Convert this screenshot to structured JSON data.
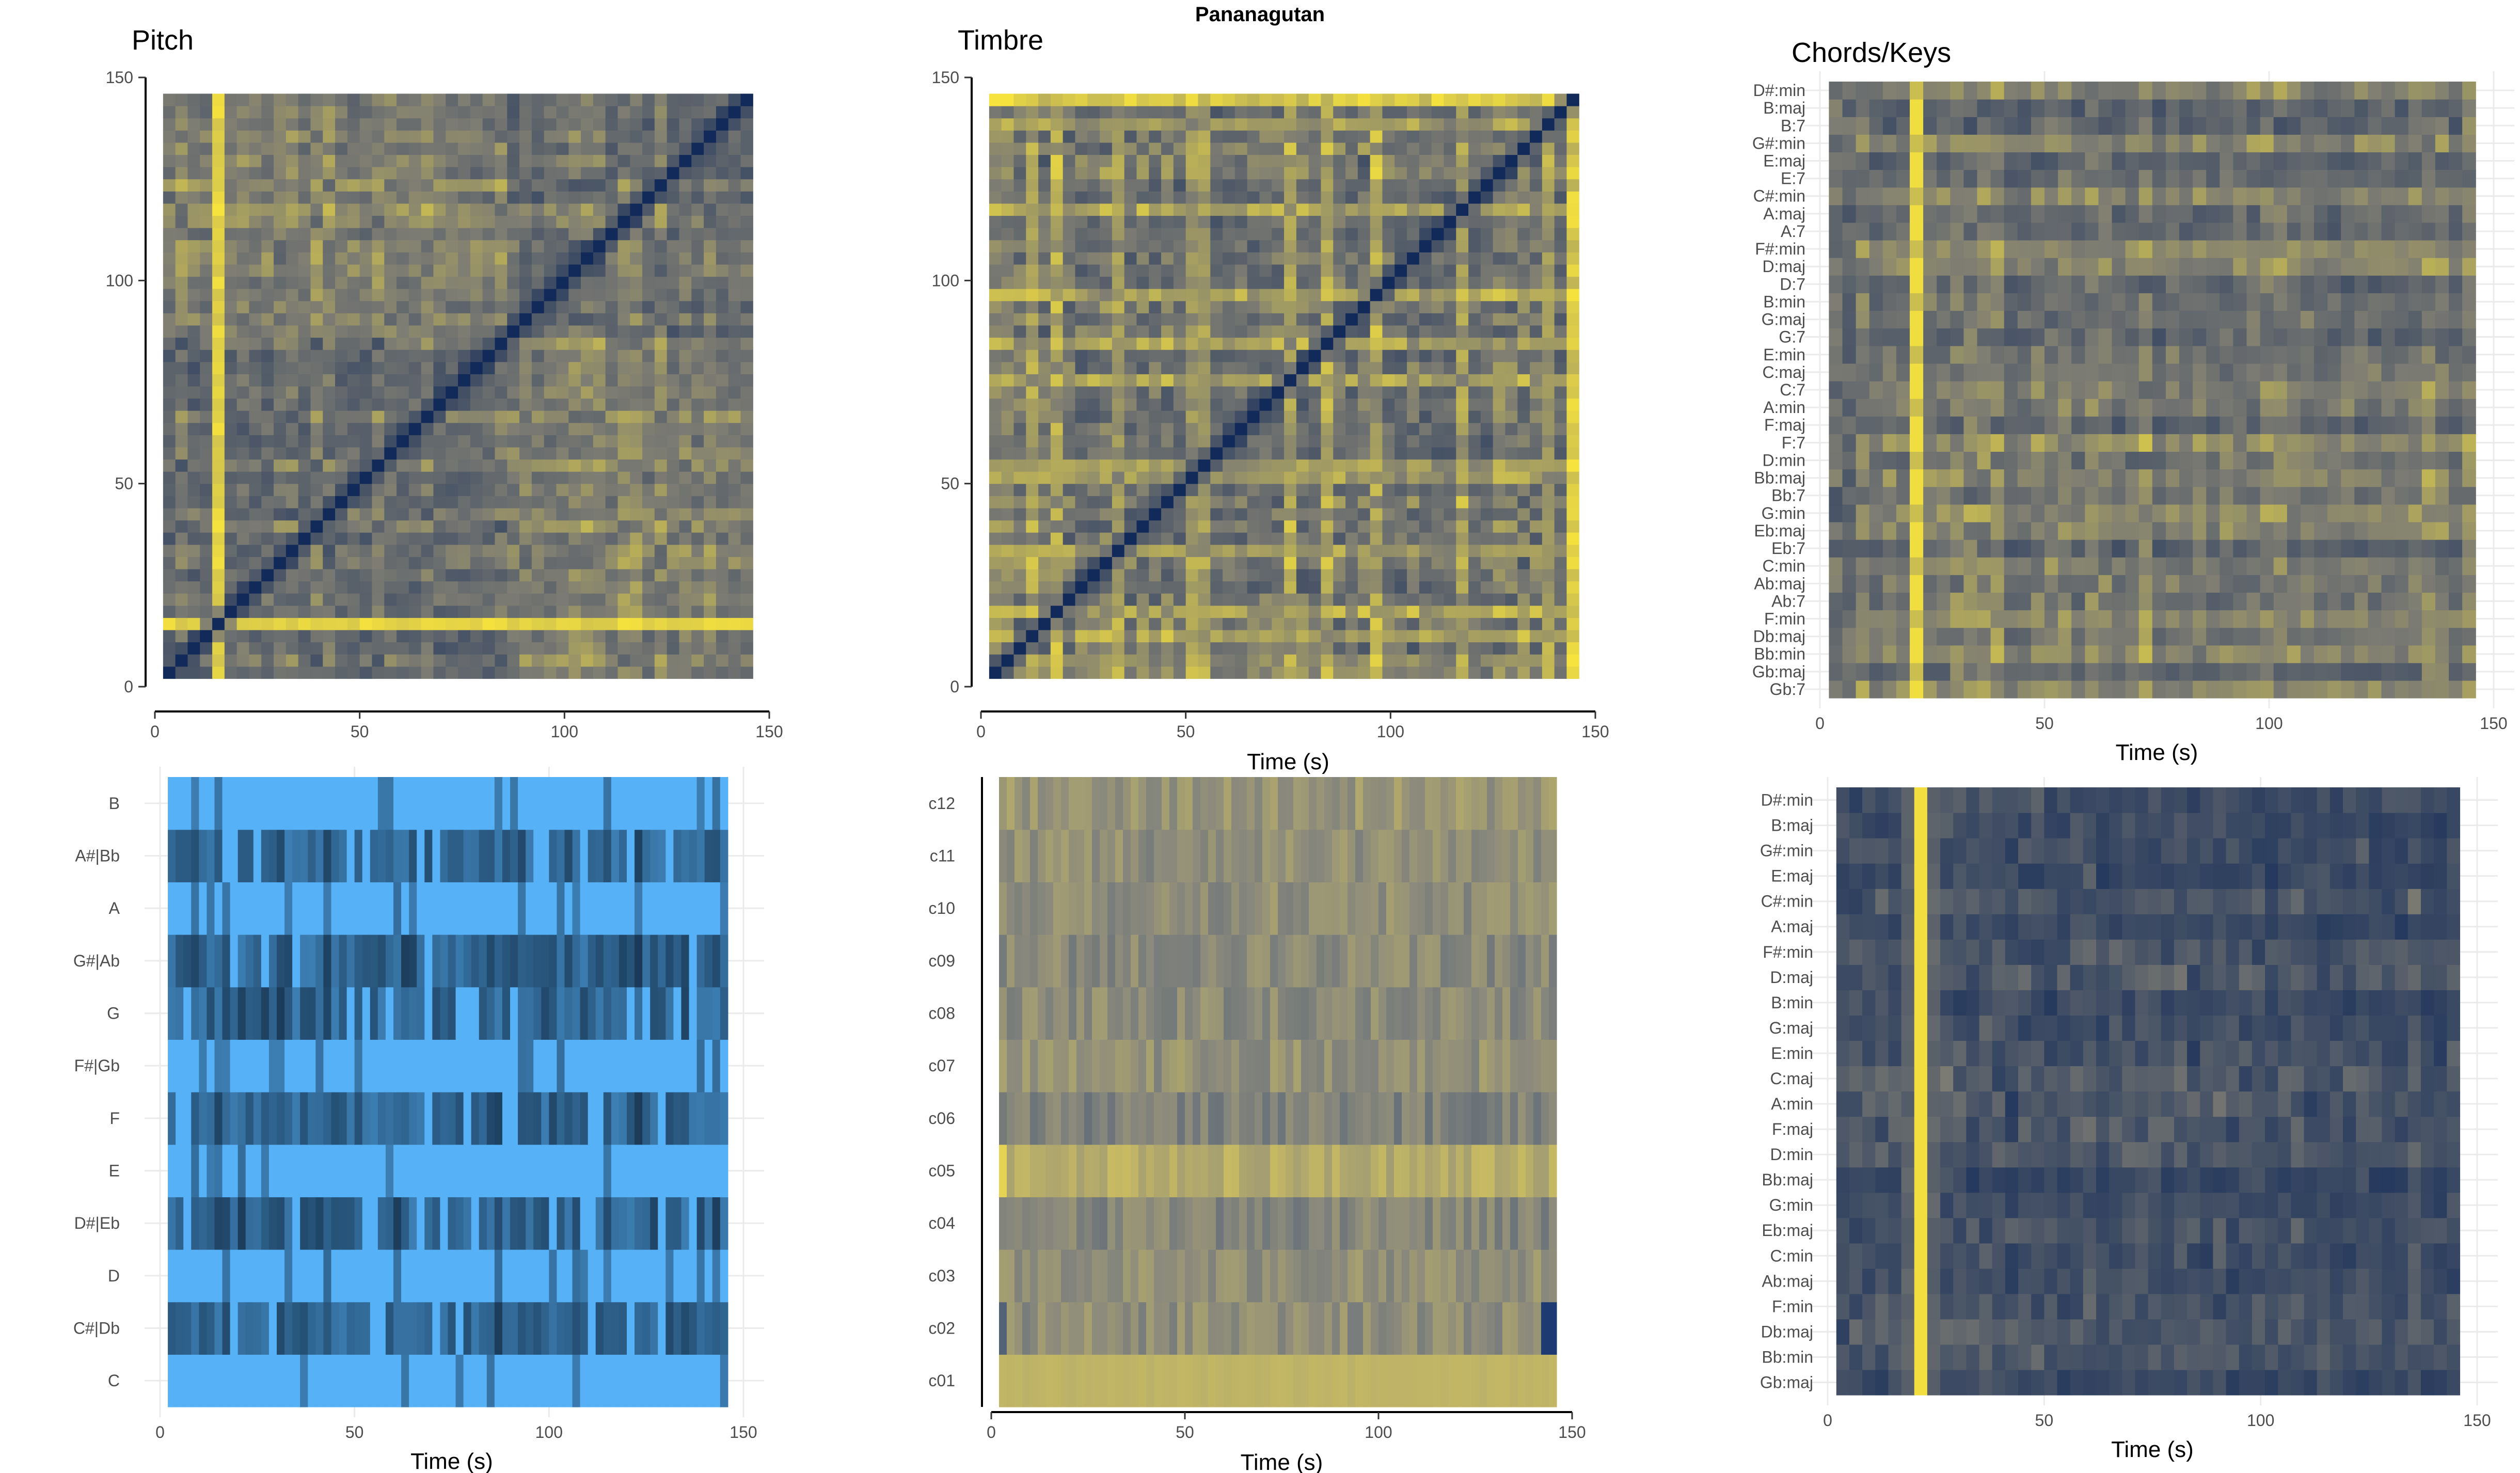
{
  "title": "Pananagutan",
  "colors": {
    "self_sim_low": "#122a59",
    "self_sim_mid": "#7d7c73",
    "self_sim_high": "#f7e33d",
    "chroma_low": "#132b43",
    "chroma_high": "#56b1f7",
    "timbre_low": "#1d3a73",
    "timbre_mid": "#8b8a7c",
    "timbre_high": "#f0db52",
    "axis_line": "#000000",
    "grid": "#ebebeb",
    "tick_text": "#4d4d4d"
  },
  "chart_data": [
    {
      "id": "pitch_selfsim",
      "type": "heatmap",
      "title": "Pitch",
      "xlabel": "",
      "ylabel": "",
      "x_ticks": [
        0,
        50,
        100,
        150
      ],
      "y_ticks": [
        0,
        50,
        100,
        150
      ],
      "xlim": [
        0,
        150
      ],
      "ylim": [
        0,
        150
      ],
      "data_extent": [
        2,
        146
      ],
      "n_cells": 48,
      "color_scale": [
        "self_sim_low",
        "self_sim_mid",
        "self_sim_high"
      ],
      "bright_index": 4,
      "diagonal": "dark"
    },
    {
      "id": "timbre_selfsim",
      "type": "heatmap",
      "title": "Timbre",
      "xlabel": "Time (s)",
      "ylabel": "",
      "x_ticks": [
        0,
        50,
        100,
        150
      ],
      "y_ticks": [
        0,
        50,
        100,
        150
      ],
      "xlim": [
        0,
        150
      ],
      "ylim": [
        0,
        150
      ],
      "data_extent": [
        2,
        146
      ],
      "n_cells": 48,
      "color_scale": [
        "self_sim_low",
        "self_sim_mid",
        "self_sim_high"
      ],
      "bright_index": 47,
      "diagonal": "dark"
    },
    {
      "id": "chords_keys",
      "type": "heatmap",
      "title": "Chords/Keys",
      "xlabel": "Time (s)",
      "ylabel": "",
      "x_ticks": [
        0,
        50,
        100,
        150
      ],
      "xlim": [
        0,
        150
      ],
      "data_extent": [
        2,
        146
      ],
      "n_cols": 48,
      "bright_col": 6,
      "color_scale": [
        "self_sim_low",
        "self_sim_mid",
        "self_sim_high"
      ],
      "categories": [
        "Gb:7",
        "Gb:maj",
        "Bb:min",
        "Db:maj",
        "F:min",
        "Ab:7",
        "Ab:maj",
        "C:min",
        "Eb:7",
        "Eb:maj",
        "G:min",
        "Bb:7",
        "Bb:maj",
        "D:min",
        "F:7",
        "F:maj",
        "A:min",
        "C:7",
        "C:maj",
        "E:min",
        "G:7",
        "G:maj",
        "B:min",
        "D:7",
        "D:maj",
        "F#:min",
        "A:7",
        "A:maj",
        "C#:min",
        "E:7",
        "E:maj",
        "G#:min",
        "B:7",
        "B:maj",
        "D#:min"
      ]
    },
    {
      "id": "chromagram",
      "type": "heatmap",
      "title": "",
      "xlabel": "Time (s)",
      "ylabel": "",
      "x_ticks": [
        0,
        50,
        100,
        150
      ],
      "xlim": [
        0,
        150
      ],
      "data_extent": [
        2,
        146
      ],
      "n_cols": 72,
      "color_scale": [
        "chroma_low",
        "chroma_high"
      ],
      "categories": [
        "C",
        "C#|Db",
        "D",
        "D#|Eb",
        "E",
        "F",
        "F#|Gb",
        "G",
        "G#|Ab",
        "A",
        "A#|Bb",
        "B"
      ]
    },
    {
      "id": "cepstrogram",
      "type": "heatmap",
      "title": "",
      "xlabel": "Time (s)",
      "ylabel": "",
      "x_ticks": [
        0,
        50,
        100,
        150
      ],
      "xlim": [
        0,
        150
      ],
      "data_extent": [
        2,
        146
      ],
      "n_cols": 72,
      "color_scale": [
        "timbre_low",
        "timbre_mid",
        "timbre_high"
      ],
      "categories": [
        "c01",
        "c02",
        "c03",
        "c04",
        "c05",
        "c06",
        "c07",
        "c08",
        "c09",
        "c10",
        "c11",
        "c12"
      ]
    },
    {
      "id": "keygram",
      "type": "heatmap",
      "title": "",
      "xlabel": "Time (s)",
      "ylabel": "",
      "x_ticks": [
        0,
        50,
        100,
        150
      ],
      "xlim": [
        0,
        150
      ],
      "data_extent": [
        2,
        146
      ],
      "n_cols": 48,
      "bright_col": 6,
      "color_scale": [
        "self_sim_low",
        "self_sim_mid",
        "self_sim_high"
      ],
      "categories": [
        "Gb:maj",
        "Bb:min",
        "Db:maj",
        "F:min",
        "Ab:maj",
        "C:min",
        "Eb:maj",
        "G:min",
        "Bb:maj",
        "D:min",
        "F:maj",
        "A:min",
        "C:maj",
        "E:min",
        "G:maj",
        "B:min",
        "D:maj",
        "F#:min",
        "A:maj",
        "C#:min",
        "E:maj",
        "G#:min",
        "B:maj",
        "D#:min"
      ]
    }
  ]
}
